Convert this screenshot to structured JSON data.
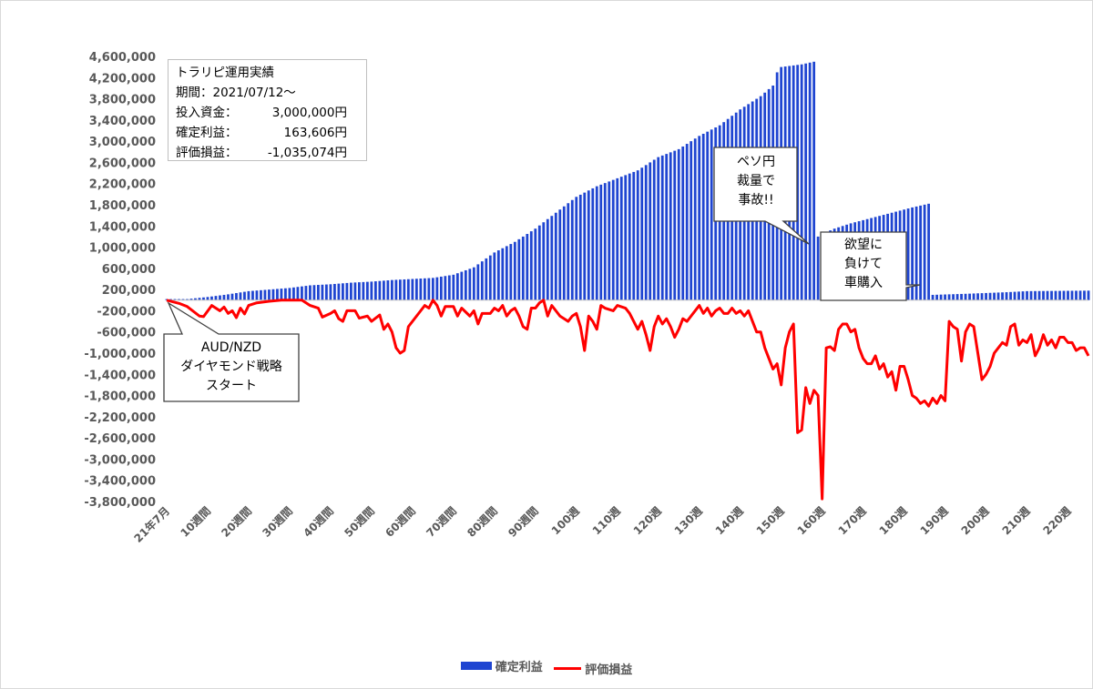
{
  "chart_data": {
    "type": "bar+line",
    "categories_every10": [
      "21年7月",
      "10週間",
      "20週間",
      "30週間",
      "40週間",
      "50週間",
      "60週間",
      "70週間",
      "80週間",
      "90週間",
      "100週",
      "110週",
      "120週",
      "130週",
      "140週",
      "150週",
      "160週",
      "170週",
      "180週",
      "190週",
      "200週",
      "210週",
      "220週"
    ],
    "week_count": 225,
    "ylim": [
      -3800000,
      4600000
    ],
    "yticks": [
      "4,600,000",
      "4,200,000",
      "3,800,000",
      "3,400,000",
      "3,000,000",
      "2,600,000",
      "2,200,000",
      "1,800,000",
      "1,400,000",
      "1,000,000",
      "600,000",
      "200,000",
      "-200,000",
      "-600,000",
      "-1,000,000",
      "-1,400,000",
      "-1,800,000",
      "-2,200,000",
      "-2,600,000",
      "-3,000,000",
      "-3,400,000",
      "-3,800,000"
    ],
    "ytick_values": [
      4600000,
      4200000,
      3800000,
      3400000,
      3000000,
      2600000,
      2200000,
      1800000,
      1400000,
      1000000,
      600000,
      200000,
      -200000,
      -600000,
      -1000000,
      -1400000,
      -1800000,
      -2200000,
      -2600000,
      -3000000,
      -3400000,
      -3800000
    ],
    "series": [
      {
        "name": "確定利益",
        "kind": "bar",
        "color": "#1f45d1",
        "anchors": [
          [
            0,
            20000
          ],
          [
            5,
            20000
          ],
          [
            10,
            60000
          ],
          [
            15,
            110000
          ],
          [
            20,
            170000
          ],
          [
            25,
            200000
          ],
          [
            30,
            230000
          ],
          [
            35,
            280000
          ],
          [
            40,
            300000
          ],
          [
            45,
            330000
          ],
          [
            50,
            350000
          ],
          [
            55,
            380000
          ],
          [
            60,
            400000
          ],
          [
            65,
            420000
          ],
          [
            70,
            480000
          ],
          [
            75,
            620000
          ],
          [
            80,
            900000
          ],
          [
            85,
            1100000
          ],
          [
            90,
            1350000
          ],
          [
            95,
            1650000
          ],
          [
            100,
            1950000
          ],
          [
            105,
            2150000
          ],
          [
            110,
            2300000
          ],
          [
            115,
            2450000
          ],
          [
            120,
            2700000
          ],
          [
            125,
            2850000
          ],
          [
            130,
            3100000
          ],
          [
            135,
            3300000
          ],
          [
            140,
            3600000
          ],
          [
            145,
            3850000
          ],
          [
            148,
            4050000
          ],
          [
            149,
            4300000
          ],
          [
            150,
            4400000
          ],
          [
            155,
            4450000
          ],
          [
            158,
            4500000
          ],
          [
            159,
            1200000
          ],
          [
            160,
            1250000
          ],
          [
            163,
            1350000
          ],
          [
            167,
            1450000
          ],
          [
            172,
            1550000
          ],
          [
            177,
            1650000
          ],
          [
            182,
            1750000
          ],
          [
            186,
            1820000
          ],
          [
            187,
            100000
          ],
          [
            195,
            120000
          ],
          [
            205,
            150000
          ],
          [
            210,
            170000
          ],
          [
            225,
            180000
          ]
        ]
      },
      {
        "name": "評価損益",
        "kind": "line",
        "color": "#ff0000",
        "anchors": [
          [
            0,
            0
          ],
          [
            3,
            -60000
          ],
          [
            5,
            -120000
          ],
          [
            8,
            -300000
          ],
          [
            9,
            -310000
          ],
          [
            11,
            -100000
          ],
          [
            13,
            -200000
          ],
          [
            14,
            -130000
          ],
          [
            15,
            -250000
          ],
          [
            16,
            -200000
          ],
          [
            17,
            -330000
          ],
          [
            18,
            -150000
          ],
          [
            19,
            -260000
          ],
          [
            20,
            -100000
          ],
          [
            22,
            -50000
          ],
          [
            25,
            -20000
          ],
          [
            28,
            0
          ],
          [
            33,
            0
          ],
          [
            35,
            -100000
          ],
          [
            37,
            -150000
          ],
          [
            38,
            -320000
          ],
          [
            40,
            -250000
          ],
          [
            41,
            -200000
          ],
          [
            42,
            -350000
          ],
          [
            43,
            -400000
          ],
          [
            44,
            -200000
          ],
          [
            46,
            -200000
          ],
          [
            47,
            -340000
          ],
          [
            49,
            -300000
          ],
          [
            50,
            -400000
          ],
          [
            52,
            -280000
          ],
          [
            53,
            -550000
          ],
          [
            54,
            -450000
          ],
          [
            55,
            -600000
          ],
          [
            56,
            -900000
          ],
          [
            57,
            -1000000
          ],
          [
            58,
            -950000
          ],
          [
            59,
            -500000
          ],
          [
            61,
            -300000
          ],
          [
            63,
            -100000
          ],
          [
            64,
            -150000
          ],
          [
            65,
            0
          ],
          [
            66,
            -100000
          ],
          [
            67,
            -300000
          ],
          [
            68,
            -120000
          ],
          [
            70,
            -120000
          ],
          [
            71,
            -300000
          ],
          [
            72,
            -150000
          ],
          [
            74,
            -300000
          ],
          [
            75,
            -200000
          ],
          [
            76,
            -450000
          ],
          [
            77,
            -250000
          ],
          [
            79,
            -250000
          ],
          [
            80,
            -150000
          ],
          [
            81,
            -200000
          ],
          [
            82,
            -100000
          ],
          [
            83,
            -300000
          ],
          [
            84,
            -200000
          ],
          [
            85,
            -150000
          ],
          [
            86,
            -300000
          ],
          [
            87,
            -500000
          ],
          [
            88,
            -550000
          ],
          [
            89,
            -150000
          ],
          [
            90,
            -150000
          ],
          [
            91,
            -50000
          ],
          [
            92,
            0
          ],
          [
            93,
            -300000
          ],
          [
            94,
            -100000
          ],
          [
            96,
            -300000
          ],
          [
            97,
            -350000
          ],
          [
            98,
            -400000
          ],
          [
            99,
            -300000
          ],
          [
            100,
            -250000
          ],
          [
            101,
            -500000
          ],
          [
            102,
            -950000
          ],
          [
            103,
            -300000
          ],
          [
            104,
            -400000
          ],
          [
            105,
            -550000
          ],
          [
            106,
            -100000
          ],
          [
            107,
            -150000
          ],
          [
            109,
            -200000
          ],
          [
            110,
            -100000
          ],
          [
            112,
            -150000
          ],
          [
            113,
            -250000
          ],
          [
            114,
            -400000
          ],
          [
            115,
            -550000
          ],
          [
            116,
            -400000
          ],
          [
            117,
            -650000
          ],
          [
            118,
            -950000
          ],
          [
            119,
            -500000
          ],
          [
            120,
            -300000
          ],
          [
            121,
            -450000
          ],
          [
            122,
            -350000
          ],
          [
            123,
            -500000
          ],
          [
            124,
            -700000
          ],
          [
            125,
            -550000
          ],
          [
            126,
            -350000
          ],
          [
            127,
            -400000
          ],
          [
            128,
            -300000
          ],
          [
            129,
            -200000
          ],
          [
            130,
            -100000
          ],
          [
            131,
            -250000
          ],
          [
            132,
            -150000
          ],
          [
            133,
            -300000
          ],
          [
            134,
            -200000
          ],
          [
            135,
            -150000
          ],
          [
            136,
            -250000
          ],
          [
            137,
            -250000
          ],
          [
            138,
            -150000
          ],
          [
            139,
            -250000
          ],
          [
            140,
            -200000
          ],
          [
            141,
            -300000
          ],
          [
            142,
            -200000
          ],
          [
            143,
            -400000
          ],
          [
            144,
            -600000
          ],
          [
            145,
            -600000
          ],
          [
            146,
            -900000
          ],
          [
            147,
            -1100000
          ],
          [
            148,
            -1300000
          ],
          [
            149,
            -1200000
          ],
          [
            150,
            -1600000
          ],
          [
            151,
            -900000
          ],
          [
            152,
            -600000
          ],
          [
            153,
            -450000
          ],
          [
            154,
            -2500000
          ],
          [
            155,
            -2450000
          ],
          [
            156,
            -1650000
          ],
          [
            157,
            -1950000
          ],
          [
            158,
            -1700000
          ],
          [
            159,
            -1800000
          ],
          [
            160,
            -3750000
          ],
          [
            161,
            -900000
          ],
          [
            162,
            -880000
          ],
          [
            163,
            -950000
          ],
          [
            164,
            -550000
          ],
          [
            165,
            -450000
          ],
          [
            166,
            -450000
          ],
          [
            167,
            -600000
          ],
          [
            168,
            -550000
          ],
          [
            169,
            -900000
          ],
          [
            170,
            -1100000
          ],
          [
            171,
            -1200000
          ],
          [
            172,
            -1200000
          ],
          [
            173,
            -1050000
          ],
          [
            174,
            -1300000
          ],
          [
            175,
            -1200000
          ],
          [
            176,
            -1450000
          ],
          [
            177,
            -1350000
          ],
          [
            178,
            -1700000
          ],
          [
            179,
            -1250000
          ],
          [
            180,
            -1250000
          ],
          [
            181,
            -1500000
          ],
          [
            182,
            -1800000
          ],
          [
            183,
            -1850000
          ],
          [
            184,
            -1950000
          ],
          [
            185,
            -1900000
          ],
          [
            186,
            -2000000
          ],
          [
            187,
            -1850000
          ],
          [
            188,
            -1950000
          ],
          [
            189,
            -1800000
          ],
          [
            190,
            -1900000
          ],
          [
            191,
            -400000
          ],
          [
            192,
            -500000
          ],
          [
            193,
            -550000
          ],
          [
            194,
            -1150000
          ],
          [
            195,
            -600000
          ],
          [
            196,
            -450000
          ],
          [
            197,
            -500000
          ],
          [
            198,
            -1000000
          ],
          [
            199,
            -1500000
          ],
          [
            200,
            -1400000
          ],
          [
            201,
            -1250000
          ],
          [
            202,
            -1000000
          ],
          [
            203,
            -900000
          ],
          [
            204,
            -800000
          ],
          [
            205,
            -850000
          ],
          [
            206,
            -500000
          ],
          [
            207,
            -450000
          ],
          [
            208,
            -850000
          ],
          [
            209,
            -750000
          ],
          [
            210,
            -800000
          ],
          [
            211,
            -650000
          ],
          [
            212,
            -1050000
          ],
          [
            213,
            -900000
          ],
          [
            214,
            -650000
          ],
          [
            215,
            -850000
          ],
          [
            216,
            -750000
          ],
          [
            217,
            -900000
          ],
          [
            218,
            -700000
          ],
          [
            219,
            -700000
          ],
          [
            220,
            -800000
          ],
          [
            221,
            -800000
          ],
          [
            222,
            -950000
          ],
          [
            223,
            -900000
          ],
          [
            224,
            -900000
          ],
          [
            225,
            -1050000
          ]
        ]
      }
    ],
    "legend_position": "bottom",
    "grid": false
  },
  "info_box": {
    "title": "トラリピ運用実績",
    "period": "期間：2021/07/12～",
    "rows": [
      {
        "label": "投入資金：",
        "value": "3,000,000円"
      },
      {
        "label": "確定利益：",
        "value": "163,606円"
      },
      {
        "label": "評価損益：",
        "value": "-1,035,074円"
      }
    ]
  },
  "callouts": {
    "start": "AUD/NZD\nダイヤモンド戦略\nスタート",
    "peso": "ペソ円\n裁量で\n事故!!",
    "car": "欲望に\n負けて\n車購入"
  }
}
